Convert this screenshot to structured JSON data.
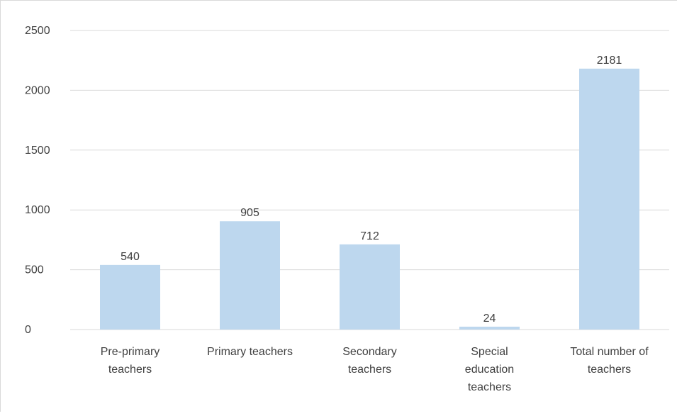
{
  "chart_data": {
    "type": "bar",
    "categories": [
      "Pre-primary teachers",
      "Primary teachers",
      "Secondary teachers",
      "Special education teachers",
      "Total number of teachers"
    ],
    "category_label_lines": [
      [
        "Pre-primary",
        "teachers"
      ],
      [
        "Primary teachers"
      ],
      [
        "Secondary",
        "teachers"
      ],
      [
        "Special",
        "education",
        "teachers"
      ],
      [
        "Total number of",
        "teachers"
      ]
    ],
    "values": [
      540,
      905,
      712,
      24,
      2181
    ],
    "data_labels": [
      "540",
      "905",
      "712",
      "24",
      "2181"
    ],
    "ylim": [
      0,
      2500
    ],
    "yticks": [
      0,
      500,
      1000,
      1500,
      2000,
      2500
    ],
    "ytick_labels": [
      "0",
      "500",
      "1000",
      "1500",
      "2000",
      "2500"
    ],
    "title": "",
    "xlabel": "",
    "ylabel": "",
    "grid": true,
    "legend": "none",
    "colors": {
      "bar": "#bdd7ee",
      "grid": "#d9d9d9",
      "text": "#404040"
    }
  }
}
